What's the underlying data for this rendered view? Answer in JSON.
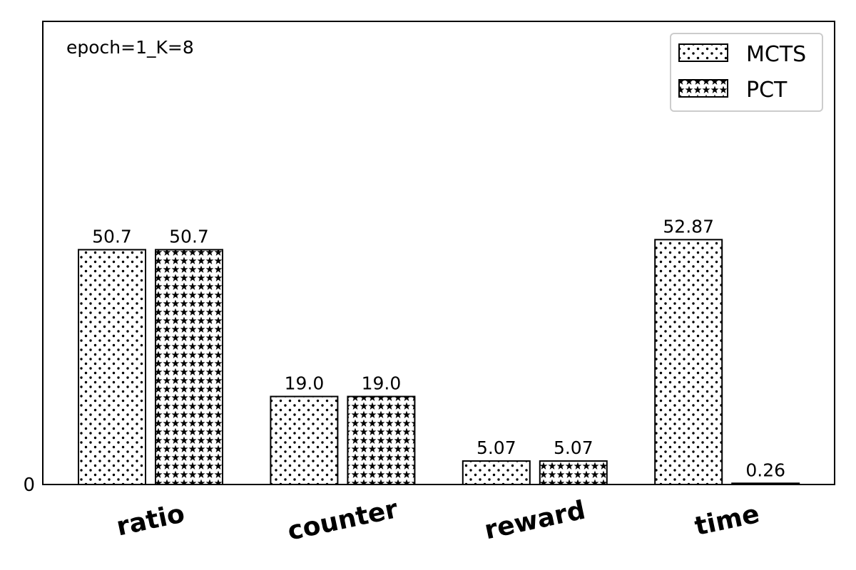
{
  "chart_data": {
    "type": "bar",
    "categories": [
      "ratio",
      "counter",
      "reward",
      "time"
    ],
    "series": [
      {
        "name": "MCTS",
        "values": [
          50.7,
          19.0,
          5.07,
          52.87
        ],
        "labels": [
          "50.7",
          "19.0",
          "5.07",
          "52.87"
        ],
        "pattern": "dots"
      },
      {
        "name": "PCT",
        "values": [
          50.7,
          19.0,
          5.07,
          0.26
        ],
        "labels": [
          "50.7",
          "19.0",
          "5.07",
          "0.26"
        ],
        "pattern": "stars"
      }
    ],
    "annotation": "epoch=1_K=8",
    "yticks": [
      0
    ],
    "ytick_labels": [
      "0"
    ],
    "ylim": [
      0,
      100
    ],
    "xlabel": "",
    "ylabel": "",
    "title": "",
    "legend_position": "top-right",
    "grid": false,
    "colors": {
      "bar_fill": "#ffffff",
      "edge": "#000000",
      "background": "#ffffff"
    }
  }
}
